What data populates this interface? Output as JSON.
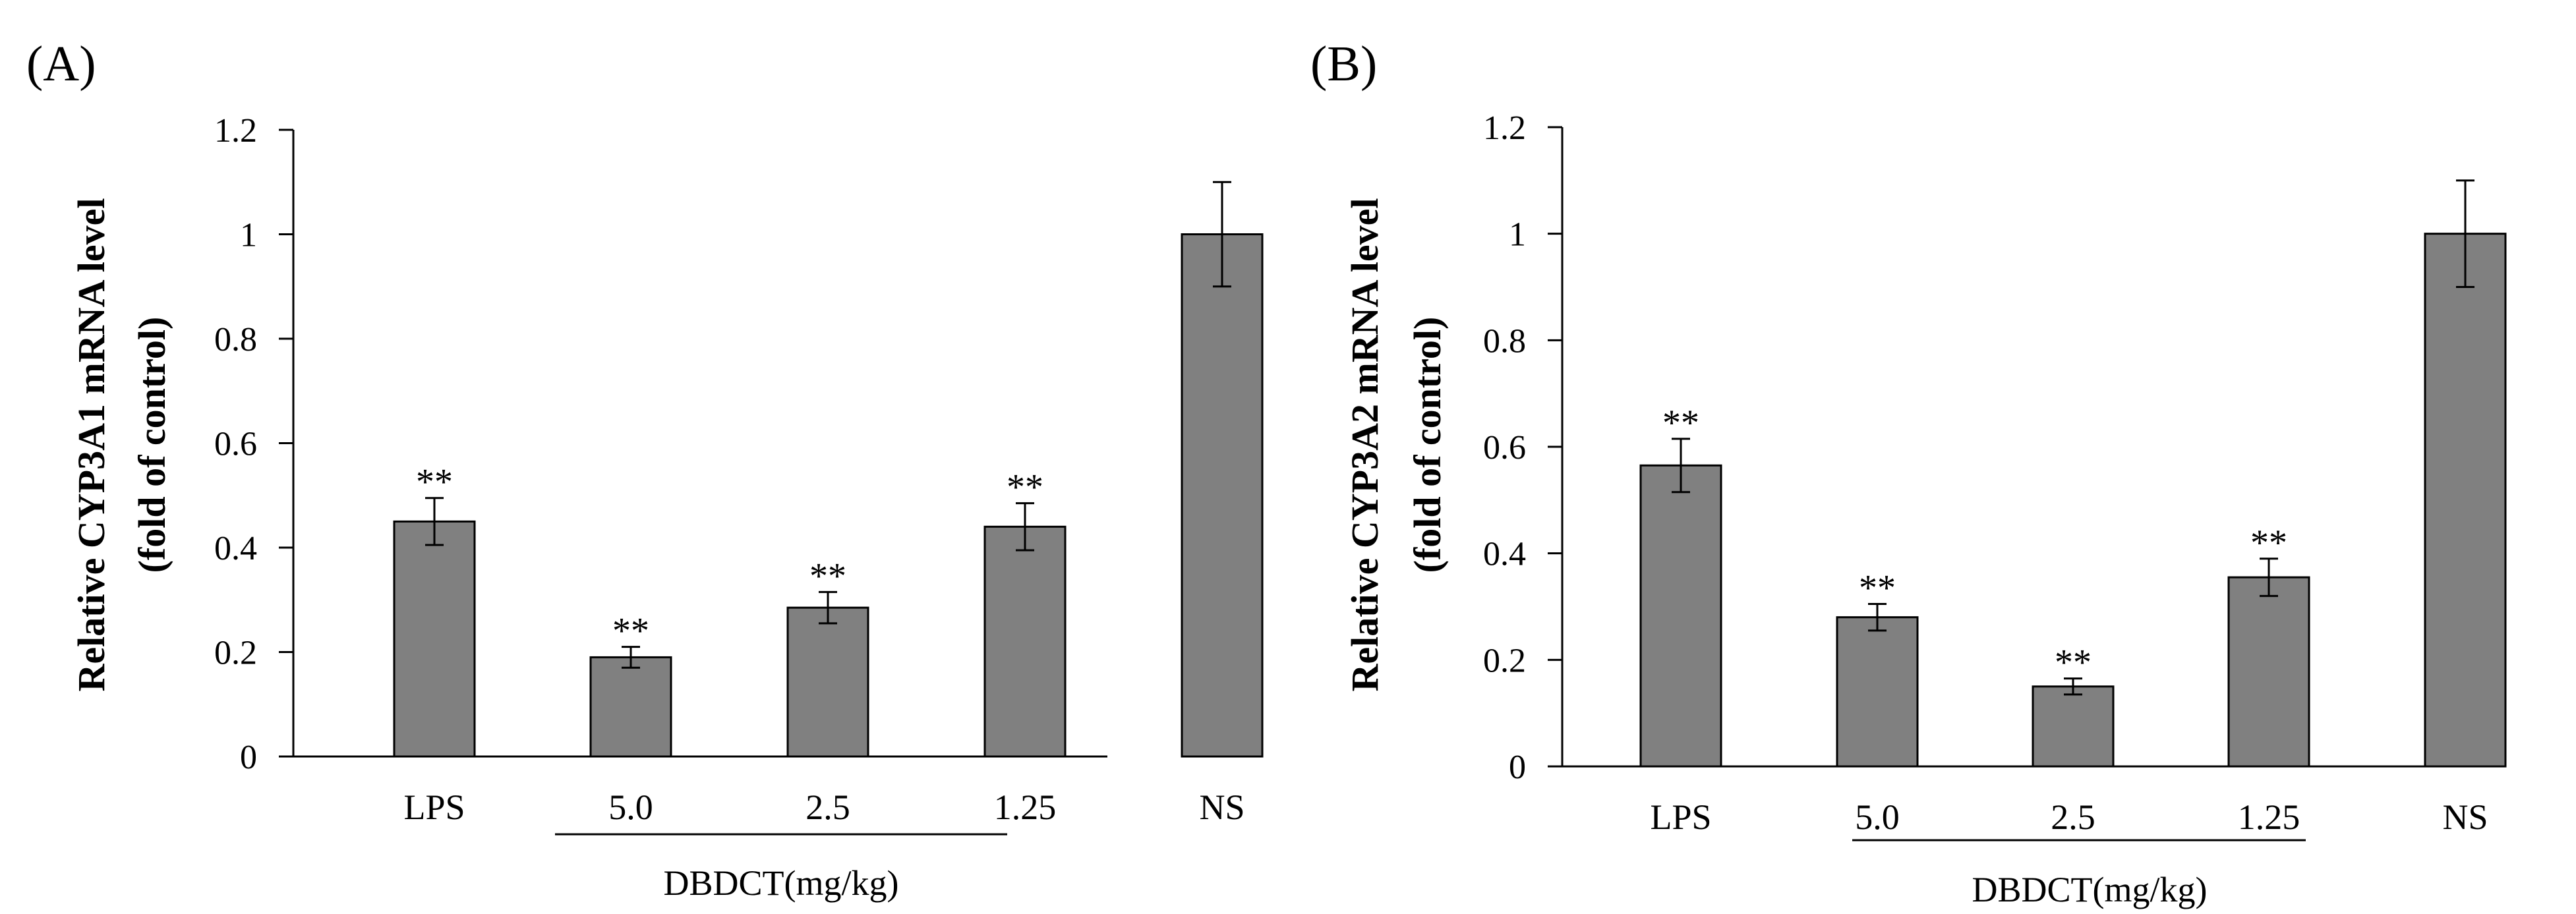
{
  "chart_data": [
    {
      "type": "bar",
      "panel_label": "(A)",
      "categories": [
        "LPS",
        "5.0",
        "2.5",
        "1.25",
        "NS"
      ],
      "values": [
        0.45,
        0.19,
        0.285,
        0.44,
        1.0
      ],
      "errors": [
        0.045,
        0.02,
        0.03,
        0.045,
        0.1
      ],
      "annotations": [
        "**",
        "**",
        "**",
        "**",
        ""
      ],
      "ylabel_line1": "Relative CYP3A1 mRNA level",
      "ylabel_line2": "(fold of control)",
      "group_label": "DBDCT(mg/kg)",
      "ylim": [
        0,
        1.2
      ],
      "yticks": [
        "0",
        "0.2",
        "0.4",
        "0.6",
        "0.8",
        "1",
        "1.2"
      ],
      "bar_color": "#808080"
    },
    {
      "type": "bar",
      "panel_label": "(B)",
      "categories": [
        "LPS",
        "5.0",
        "2.5",
        "1.25",
        "NS"
      ],
      "values": [
        0.565,
        0.28,
        0.15,
        0.355,
        1.0
      ],
      "errors": [
        0.05,
        0.025,
        0.015,
        0.035,
        0.1
      ],
      "annotations": [
        "**",
        "**",
        "**",
        "**",
        ""
      ],
      "ylabel_line1": "Relative CYP3A2 mRNA level",
      "ylabel_line2": "(fold of control)",
      "group_label": "DBDCT(mg/kg)",
      "ylim": [
        0,
        1.2
      ],
      "yticks": [
        "0",
        "0.2",
        "0.4",
        "0.6",
        "0.8",
        "1",
        "1.2"
      ],
      "bar_color": "#808080"
    }
  ]
}
